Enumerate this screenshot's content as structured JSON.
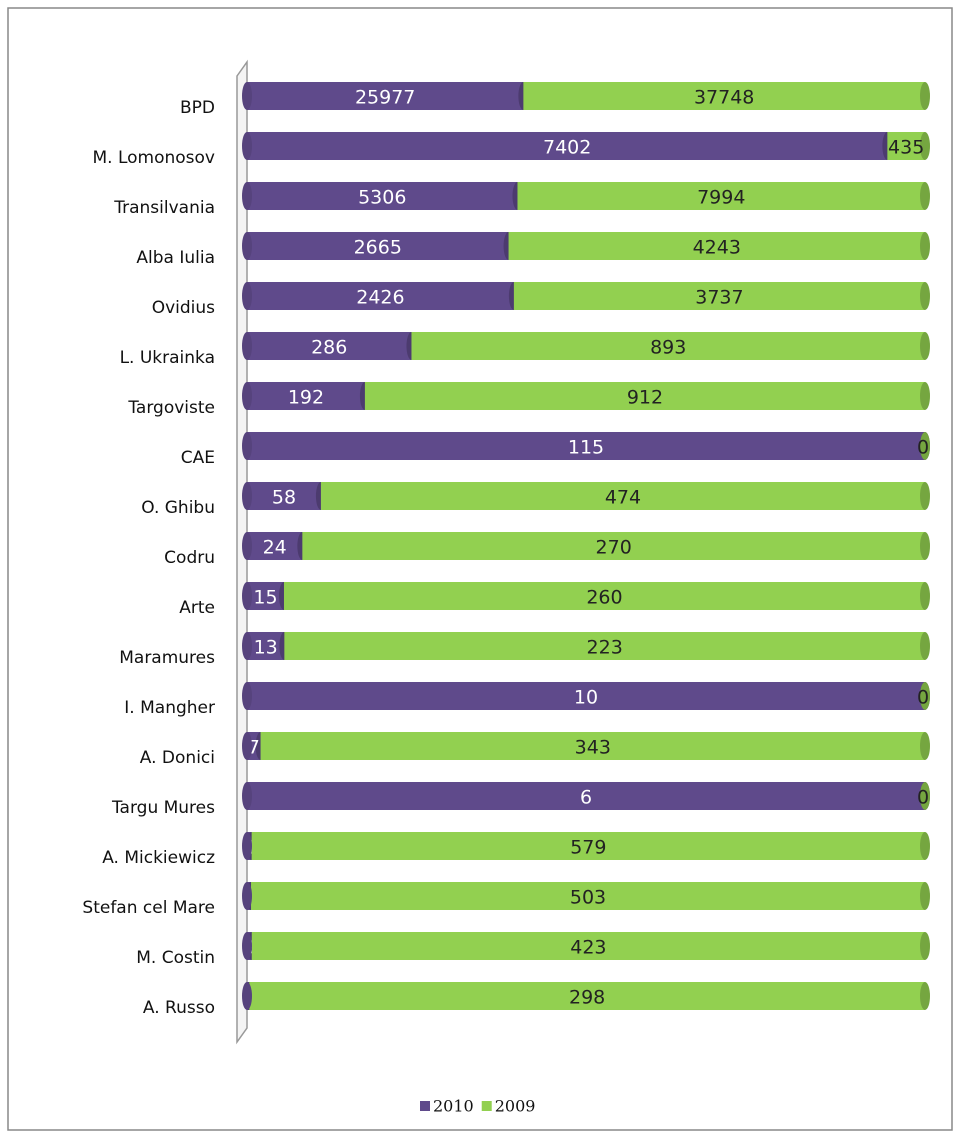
{
  "chart_data": {
    "type": "bar",
    "stacked": "percent",
    "orientation": "horizontal",
    "categories": [
      "BPD",
      "M. Lomonosov",
      "Transilvania",
      "Alba Iulia",
      "Ovidius",
      "L. Ukrainka",
      "Targoviste",
      "CAE",
      "O. Ghibu",
      "Codru",
      "Arte",
      "Maramures",
      "I. Mangher",
      "A. Donici",
      "Targu Mures",
      "A. Mickiewicz",
      "Stefan cel Mare",
      "M. Costin",
      "A. Russo"
    ],
    "series": [
      {
        "name": "2010",
        "color": "#5f4a8b",
        "values": [
          25977,
          7402,
          5306,
          2665,
          2426,
          286,
          192,
          115,
          58,
          24,
          15,
          13,
          10,
          7,
          6,
          4,
          3,
          3,
          1
        ]
      },
      {
        "name": "2009",
        "color": "#92d050",
        "values": [
          37748,
          435,
          7994,
          4243,
          3737,
          893,
          912,
          0,
          474,
          270,
          260,
          223,
          0,
          343,
          0,
          579,
          503,
          423,
          298
        ]
      }
    ],
    "legend": "bottom"
  }
}
